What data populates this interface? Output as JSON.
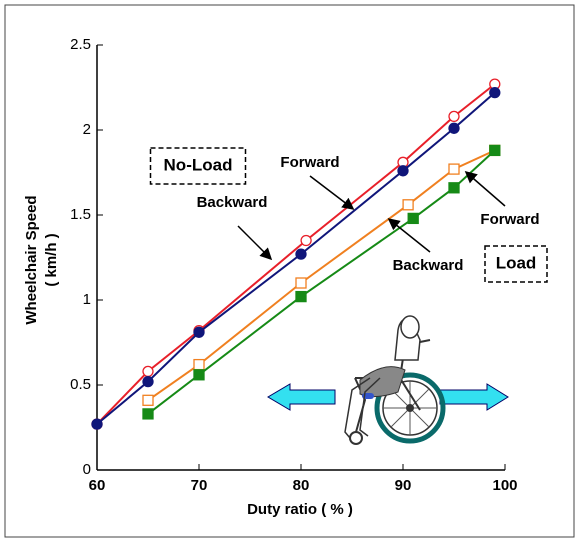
{
  "chart_data": {
    "type": "line",
    "x_label": "Duty ratio ( % )",
    "y_label": "Wheelchair Speed",
    "y_unit": "( km/h )",
    "xlim": [
      60,
      100
    ],
    "xticks": [
      60,
      70,
      80,
      90,
      100
    ],
    "ylim": [
      0,
      2.5
    ],
    "yticks": [
      0,
      0.5,
      1,
      1.5,
      2,
      2.5
    ],
    "series": [
      {
        "color": "#e8202a",
        "marker": "circle-open",
        "x": [
          60,
          65,
          70,
          80.5,
          90,
          95,
          99
        ],
        "values": [
          0.27,
          0.58,
          0.82,
          1.35,
          1.81,
          2.08,
          2.27
        ]
      },
      {
        "color": "#10167a",
        "marker": "circle-filled",
        "x": [
          60,
          65,
          70,
          80,
          90,
          95,
          99
        ],
        "values": [
          0.27,
          0.52,
          0.81,
          1.27,
          1.76,
          2.01,
          2.22
        ]
      },
      {
        "color": "#f08020",
        "marker": "square-open",
        "x": [
          65,
          70,
          80,
          90.5,
          95,
          99
        ],
        "values": [
          0.41,
          0.62,
          1.1,
          1.56,
          1.77,
          1.88
        ]
      },
      {
        "color": "#168a16",
        "marker": "square-filled",
        "x": [
          65,
          70,
          80,
          91,
          95,
          99
        ],
        "values": [
          0.33,
          0.56,
          1.02,
          1.48,
          1.66,
          1.88
        ]
      }
    ],
    "annotations": [
      "No-Load",
      "Forward",
      "Backward",
      "Forward",
      "Backward",
      "Load"
    ]
  }
}
